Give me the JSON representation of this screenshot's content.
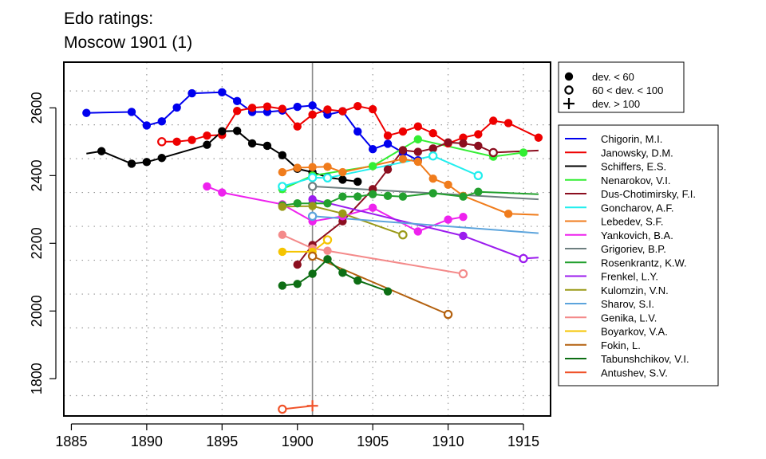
{
  "chart_data": {
    "type": "line",
    "title": "Edo ratings:",
    "subtitle": "Moscow 1901 (1)",
    "xlim": [
      1884.5,
      1916.8
    ],
    "ylim": [
      1690,
      2735
    ],
    "x_ticks": [
      1885,
      1890,
      1895,
      1900,
      1905,
      1910,
      1915
    ],
    "y_ticks": [
      1800,
      2000,
      2200,
      2400,
      2600
    ],
    "x_gridlines": [
      1890,
      1895,
      1905,
      1910,
      1915
    ],
    "y_gridlines": [
      1750,
      1850,
      1950,
      2050,
      2150,
      2250,
      2350,
      2450,
      2550,
      2650
    ],
    "event_line_x": 1901,
    "legend_markers": [
      {
        "marker": "filled",
        "label": "dev. < 60"
      },
      {
        "marker": "open",
        "label": "60 < dev. < 100"
      },
      {
        "marker": "plus",
        "label": "dev. > 100"
      }
    ],
    "series": [
      {
        "name": "Chigorin, M.I.",
        "color": "#0000ee",
        "points": [
          [
            1886,
            2585,
            "f"
          ],
          [
            1889,
            2588,
            "f"
          ],
          [
            1890,
            2548,
            "f"
          ],
          [
            1891,
            2560,
            "f"
          ],
          [
            1892,
            2601,
            "f"
          ],
          [
            1893,
            2643,
            "f"
          ],
          [
            1895,
            2646,
            "f"
          ],
          [
            1896,
            2620,
            "f"
          ],
          [
            1897,
            2588,
            "f"
          ],
          [
            1898,
            2588,
            "f"
          ],
          [
            1899,
            2592,
            "f"
          ],
          [
            1900,
            2603,
            "f"
          ],
          [
            1901,
            2607,
            "f"
          ],
          [
            1902,
            2580,
            "f"
          ],
          [
            1903,
            2590,
            "f"
          ],
          [
            1904,
            2530,
            "f"
          ],
          [
            1905,
            2478,
            "f"
          ],
          [
            1906,
            2494,
            "f"
          ],
          [
            1907,
            2468,
            "f"
          ],
          [
            1908,
            2445,
            "f"
          ]
        ]
      },
      {
        "name": "Janowsky, D.M.",
        "color": "#ee0000",
        "points": [
          [
            1891,
            2500,
            "o"
          ],
          [
            1892,
            2500,
            "f"
          ],
          [
            1893,
            2505,
            "f"
          ],
          [
            1894,
            2518,
            "f"
          ],
          [
            1895,
            2520,
            "f"
          ],
          [
            1896,
            2591,
            "f"
          ],
          [
            1897,
            2600,
            "f"
          ],
          [
            1898,
            2604,
            "f"
          ],
          [
            1899,
            2597,
            "f"
          ],
          [
            1900,
            2545,
            "f"
          ],
          [
            1901,
            2580,
            "f"
          ],
          [
            1902,
            2595,
            "f"
          ],
          [
            1903,
            2590,
            "f"
          ],
          [
            1904,
            2605,
            "f"
          ],
          [
            1905,
            2596,
            "f"
          ],
          [
            1906,
            2518,
            "f"
          ],
          [
            1907,
            2530,
            "f"
          ],
          [
            1908,
            2545,
            "f"
          ],
          [
            1909,
            2525,
            "f"
          ],
          [
            1910,
            2495,
            "f"
          ],
          [
            1911,
            2512,
            "f"
          ],
          [
            1912,
            2522,
            "f"
          ],
          [
            1913,
            2562,
            "f"
          ],
          [
            1914,
            2555,
            "f"
          ],
          [
            1916,
            2512,
            "f"
          ]
        ]
      },
      {
        "name": "Schiffers, E.S.",
        "color": "#000000",
        "points": [
          [
            1886,
            2465,
            "n"
          ],
          [
            1887,
            2472,
            "f"
          ],
          [
            1889,
            2435,
            "f"
          ],
          [
            1890,
            2440,
            "f"
          ],
          [
            1891,
            2452,
            "f"
          ],
          [
            1894,
            2491,
            "f"
          ],
          [
            1895,
            2531,
            "f"
          ],
          [
            1896,
            2532,
            "f"
          ],
          [
            1897,
            2495,
            "f"
          ],
          [
            1898,
            2488,
            "f"
          ],
          [
            1899,
            2460,
            "f"
          ],
          [
            1900,
            2420,
            "f"
          ],
          [
            1901,
            2410,
            "f"
          ],
          [
            1902,
            2395,
            "f"
          ],
          [
            1903,
            2388,
            "f"
          ],
          [
            1904,
            2382,
            "f"
          ]
        ]
      },
      {
        "name": "Nenarokov, V.I.",
        "color": "#33ee33",
        "points": [
          [
            1899,
            2360,
            "f"
          ],
          [
            1901,
            2400,
            "f"
          ],
          [
            1905,
            2428,
            "f"
          ],
          [
            1908,
            2507,
            "f"
          ],
          [
            1913,
            2456,
            "f"
          ],
          [
            1915,
            2468,
            "f"
          ]
        ]
      },
      {
        "name": "Dus-Chotimirsky, F.I.",
        "color": "#8b0e1f",
        "points": [
          [
            1900,
            2137,
            "f"
          ],
          [
            1901,
            2195,
            "f"
          ],
          [
            1903,
            2265,
            "f"
          ],
          [
            1905,
            2360,
            "f"
          ],
          [
            1906,
            2418,
            "f"
          ],
          [
            1907,
            2475,
            "f"
          ],
          [
            1908,
            2470,
            "f"
          ],
          [
            1909,
            2480,
            "f"
          ],
          [
            1910,
            2498,
            "f"
          ],
          [
            1911,
            2495,
            "f"
          ],
          [
            1912,
            2488,
            "f"
          ],
          [
            1913,
            2468,
            "o"
          ],
          [
            1916,
            2474,
            "n"
          ]
        ]
      },
      {
        "name": "Goncharov, A.F.",
        "color": "#22eeee",
        "points": [
          [
            1899,
            2368,
            "o"
          ],
          [
            1901,
            2394,
            "o"
          ],
          [
            1902,
            2393,
            "o"
          ],
          [
            1909,
            2458,
            "o"
          ],
          [
            1912,
            2400,
            "o"
          ]
        ]
      },
      {
        "name": "Lebedev, S.F.",
        "color": "#f07c1c",
        "points": [
          [
            1899,
            2410,
            "f"
          ],
          [
            1900,
            2423,
            "f"
          ],
          [
            1901,
            2425,
            "f"
          ],
          [
            1902,
            2426,
            "f"
          ],
          [
            1903,
            2410,
            "f"
          ],
          [
            1907,
            2449,
            "f"
          ],
          [
            1908,
            2441,
            "f"
          ],
          [
            1909,
            2391,
            "f"
          ],
          [
            1910,
            2373,
            "f"
          ],
          [
            1911,
            2340,
            "f"
          ],
          [
            1914,
            2287,
            "f"
          ],
          [
            1916,
            2284,
            "n"
          ]
        ]
      },
      {
        "name": "Yankovich, B.A.",
        "color": "#ee22ee",
        "points": [
          [
            1894,
            2368,
            "f"
          ],
          [
            1895,
            2350,
            "f"
          ],
          [
            1899,
            2315,
            "f"
          ],
          [
            1901,
            2265,
            "f"
          ],
          [
            1903,
            2280,
            "f"
          ],
          [
            1905,
            2305,
            "f"
          ],
          [
            1908,
            2235,
            "f"
          ],
          [
            1910,
            2270,
            "f"
          ],
          [
            1911,
            2278,
            "f"
          ]
        ]
      },
      {
        "name": "Grigoriev, B.P.",
        "color": "#6e7f80",
        "points": [
          [
            1901,
            2368,
            "o"
          ],
          [
            1916,
            2330,
            "n"
          ]
        ]
      },
      {
        "name": "Rosenkrantz, K.W.",
        "color": "#22a02e",
        "points": [
          [
            1899,
            2312,
            "f"
          ],
          [
            1900,
            2318,
            "f"
          ],
          [
            1901,
            2318,
            "f"
          ],
          [
            1902,
            2318,
            "f"
          ],
          [
            1903,
            2338,
            "f"
          ],
          [
            1904,
            2338,
            "f"
          ],
          [
            1905,
            2345,
            "f"
          ],
          [
            1906,
            2340,
            "f"
          ],
          [
            1907,
            2338,
            "f"
          ],
          [
            1909,
            2348,
            "f"
          ],
          [
            1911,
            2338,
            "f"
          ],
          [
            1912,
            2352,
            "f"
          ],
          [
            1916,
            2345,
            "n"
          ]
        ]
      },
      {
        "name": "Frenkel, L.Y.",
        "color": "#9b1cee",
        "points": [
          [
            1901,
            2330,
            "f"
          ],
          [
            1911,
            2222,
            "f"
          ],
          [
            1915,
            2155,
            "o"
          ],
          [
            1916,
            2158,
            "n"
          ]
        ]
      },
      {
        "name": "Kulomzin, V.N.",
        "color": "#9a9a18",
        "points": [
          [
            1899,
            2308,
            "f"
          ],
          [
            1901,
            2310,
            "f"
          ],
          [
            1903,
            2288,
            "f"
          ],
          [
            1907,
            2225,
            "o"
          ]
        ]
      },
      {
        "name": "Sharov, S.I.",
        "color": "#5ca4dc",
        "points": [
          [
            1901,
            2280,
            "o"
          ],
          [
            1916,
            2230,
            "n"
          ]
        ]
      },
      {
        "name": "Genika, L.V.",
        "color": "#f48a8a",
        "points": [
          [
            1899,
            2225,
            "f"
          ],
          [
            1901,
            2185,
            "f"
          ],
          [
            1902,
            2178,
            "f"
          ],
          [
            1911,
            2110,
            "o"
          ]
        ]
      },
      {
        "name": "Boyarkov, V.A.",
        "color": "#f5c400",
        "points": [
          [
            1899,
            2175,
            "f"
          ],
          [
            1901,
            2175,
            "f"
          ],
          [
            1902,
            2210,
            "o"
          ]
        ]
      },
      {
        "name": "Fokin, L.",
        "color": "#b3600e",
        "points": [
          [
            1901,
            2162,
            "o"
          ],
          [
            1910,
            1990,
            "o"
          ]
        ]
      },
      {
        "name": "Tabunshchikov, V.I.",
        "color": "#0d6e14",
        "points": [
          [
            1899,
            2075,
            "f"
          ],
          [
            1900,
            2080,
            "f"
          ],
          [
            1901,
            2110,
            "f"
          ],
          [
            1902,
            2153,
            "f"
          ],
          [
            1903,
            2113,
            "f"
          ],
          [
            1904,
            2090,
            "f"
          ],
          [
            1906,
            2058,
            "f"
          ]
        ]
      },
      {
        "name": "Antushev, S.V.",
        "color": "#f0532a",
        "points": [
          [
            1899,
            1710,
            "o"
          ],
          [
            1901,
            1720,
            "p"
          ]
        ]
      }
    ]
  }
}
